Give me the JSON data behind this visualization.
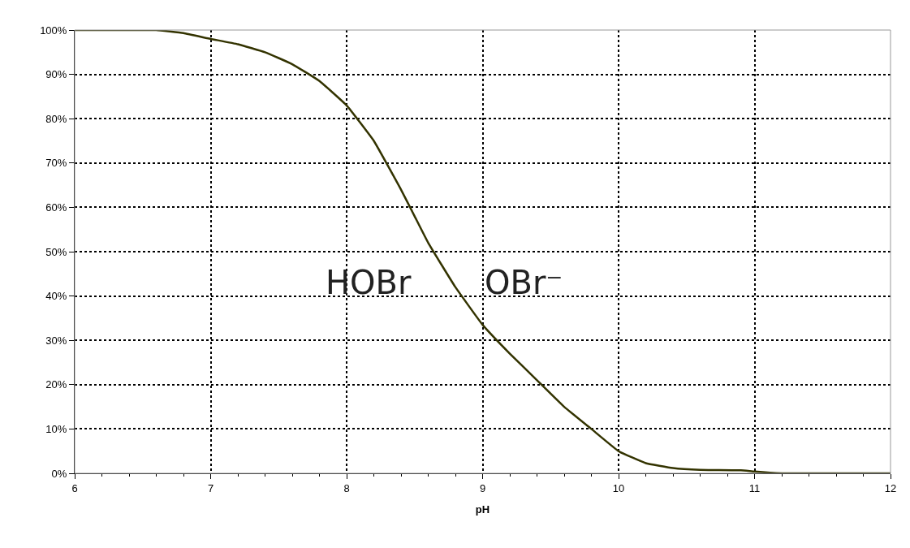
{
  "chart_data": {
    "type": "line",
    "xlabel": "pH",
    "x": [
      6.0,
      6.4,
      6.6,
      6.8,
      7.0,
      7.2,
      7.4,
      7.6,
      7.8,
      8.0,
      8.2,
      8.4,
      8.5,
      8.6,
      8.8,
      9.0,
      9.2,
      9.4,
      9.6,
      9.8,
      10.0,
      10.2,
      10.4,
      10.6,
      10.9,
      11.0,
      11.2,
      12.0
    ],
    "series": [
      {
        "color": "#333300",
        "values": [
          100,
          100,
          100,
          99.3,
          98,
          96.8,
          95,
          92.3,
          88.5,
          83,
          75,
          64,
          58,
          52,
          42,
          33.5,
          27,
          21,
          15,
          10,
          5,
          2.3,
          1.2,
          0.8,
          0.7,
          0.4,
          0,
          0
        ]
      }
    ],
    "xlim": [
      6,
      12
    ],
    "xticks": [
      6,
      7,
      8,
      9,
      10,
      11,
      12
    ],
    "ylim": [
      0,
      100
    ],
    "yticks": [
      {
        "value": 0,
        "label": "0%"
      },
      {
        "value": 10,
        "label": "10%"
      },
      {
        "value": 20,
        "label": "20%"
      },
      {
        "value": 30,
        "label": "30%"
      },
      {
        "value": 40,
        "label": "40%"
      },
      {
        "value": 50,
        "label": "50%"
      },
      {
        "value": 60,
        "label": "60%"
      },
      {
        "value": 70,
        "label": "70%"
      },
      {
        "value": 80,
        "label": "80%"
      },
      {
        "value": 90,
        "label": "90%"
      },
      {
        "value": 100,
        "label": "100%"
      }
    ],
    "annotations": [
      "HOBr",
      "OBr⁻"
    ],
    "grid": true,
    "marker": "none",
    "line_style": "solid"
  }
}
